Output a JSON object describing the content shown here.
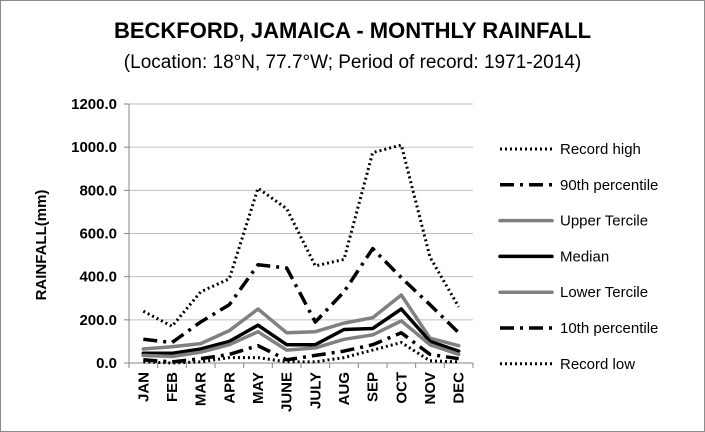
{
  "chart_data": {
    "type": "line",
    "title": "BECKFORD, JAMAICA - MONTHLY RAINFALL",
    "subtitle": "(Location: 18°N, 77.7°W; Period of record: 1971-2014)",
    "ylabel": "RAINFALL(mm)",
    "xlabel": "",
    "ylim": [
      0,
      1200
    ],
    "ytick_step": 200,
    "y_tick_labels": [
      "0.0",
      "200.0",
      "400.0",
      "600.0",
      "800.0",
      "1000.0",
      "1200.0"
    ],
    "grid": true,
    "legend_position": "right",
    "categories": [
      "JAN",
      "FEB",
      "MAR",
      "APR",
      "MAY",
      "JUNE",
      "JULY",
      "AUG",
      "SEP",
      "OCT",
      "NOV",
      "DEC"
    ],
    "series": [
      {
        "name": "Record high",
        "style": "dotted",
        "color": "#000000",
        "values": [
          240,
          170,
          330,
          390,
          810,
          715,
          450,
          480,
          975,
          1010,
          490,
          260
        ]
      },
      {
        "name": "90th percentile",
        "style": "dashdot",
        "color": "#000000",
        "values": [
          110,
          95,
          190,
          270,
          455,
          440,
          190,
          330,
          530,
          395,
          270,
          140
        ]
      },
      {
        "name": "Upper Tercile",
        "style": "solid",
        "color": "#808080",
        "values": [
          65,
          75,
          90,
          150,
          250,
          140,
          145,
          185,
          210,
          315,
          115,
          80
        ]
      },
      {
        "name": "Median",
        "style": "solid",
        "color": "#000000",
        "values": [
          45,
          45,
          65,
          100,
          175,
          85,
          85,
          155,
          160,
          250,
          100,
          55
        ]
      },
      {
        "name": "Lower Tercile",
        "style": "solid",
        "color": "#808080",
        "values": [
          35,
          30,
          50,
          85,
          145,
          60,
          70,
          110,
          130,
          195,
          85,
          40
        ]
      },
      {
        "name": "10th percentile",
        "style": "dashdot",
        "color": "#000000",
        "values": [
          15,
          5,
          20,
          40,
          80,
          15,
          35,
          55,
          85,
          140,
          40,
          20
        ]
      },
      {
        "name": "Record low",
        "style": "dotted",
        "color": "#000000",
        "values": [
          5,
          0,
          5,
          25,
          25,
          5,
          5,
          25,
          60,
          95,
          10,
          5
        ]
      }
    ]
  }
}
